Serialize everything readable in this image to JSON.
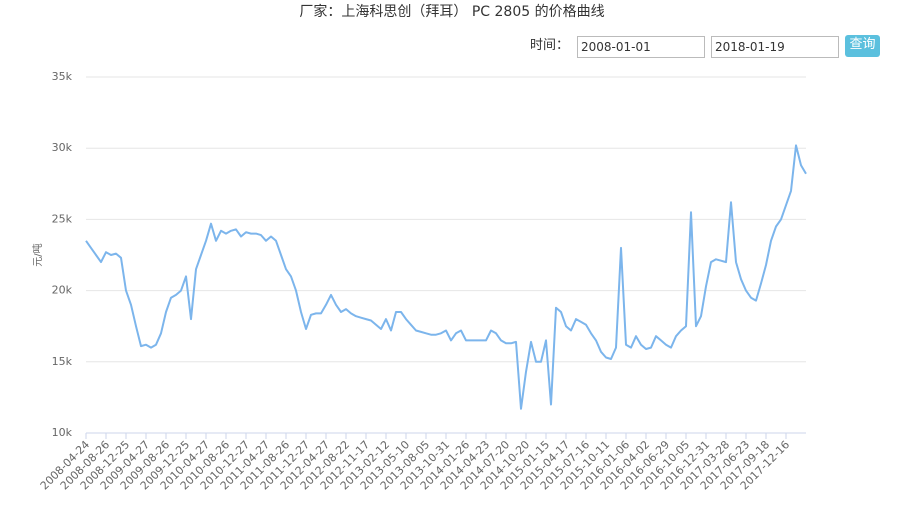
{
  "controls": {
    "time_label": "时间：",
    "start_date": "2008-01-01",
    "end_date": "2018-01-19",
    "button": "查询"
  },
  "chart_data": {
    "type": "line",
    "title": "厂家：上海科思创（拜耳） PC 2805 的价格曲线",
    "y_label": "元/吨",
    "categories": [
      "2008-04-24",
      null,
      null,
      null,
      "2008-08-26",
      null,
      null,
      null,
      "2008-12-25",
      null,
      null,
      null,
      "2009-04-27",
      null,
      null,
      null,
      "2009-08-26",
      null,
      null,
      null,
      "2009-12-25",
      null,
      null,
      null,
      "2010-04-27",
      null,
      null,
      null,
      "2010-08-26",
      null,
      null,
      null,
      "2010-12-27",
      null,
      null,
      null,
      "2011-04-27",
      null,
      null,
      null,
      "2011-08-26",
      null,
      null,
      null,
      "2011-12-27",
      null,
      null,
      null,
      "2012-04-27",
      null,
      null,
      null,
      "2012-08-22",
      null,
      null,
      null,
      "2012-11-17",
      null,
      null,
      null,
      "2013-02-12",
      null,
      null,
      null,
      "2013-05-10",
      null,
      null,
      null,
      "2013-08-05",
      null,
      null,
      null,
      "2013-10-31",
      null,
      null,
      null,
      "2014-01-26",
      null,
      null,
      null,
      "2014-04-23",
      null,
      null,
      null,
      "2014-07-20",
      null,
      null,
      null,
      "2014-10-20",
      null,
      null,
      null,
      "2015-01-15",
      null,
      null,
      null,
      "2015-04-17",
      null,
      null,
      null,
      "2015-07-16",
      null,
      null,
      null,
      "2015-10-11",
      null,
      null,
      null,
      "2016-01-06",
      null,
      null,
      null,
      "2016-04-02",
      null,
      null,
      null,
      "2016-06-29",
      null,
      null,
      null,
      "2016-10-05",
      null,
      null,
      null,
      "2016-12-31",
      null,
      null,
      null,
      "2017-03-28",
      null,
      null,
      null,
      "2017-06-23",
      null,
      null,
      null,
      "2017-09-18",
      null,
      null,
      null,
      "2017-12-16",
      null,
      null,
      null,
      null
    ],
    "series": [
      {
        "color": "#7cb5ec",
        "values": [
          23500,
          23000,
          22500,
          22000,
          22700,
          22500,
          22600,
          22300,
          20000,
          19000,
          17500,
          16100,
          16200,
          16000,
          16200,
          17000,
          18500,
          19500,
          19700,
          20000,
          21000,
          18000,
          21500,
          22500,
          23500,
          24700,
          23500,
          24200,
          24000,
          24200,
          24300,
          23800,
          24100,
          24000,
          24000,
          23900,
          23500,
          23800,
          23500,
          22500,
          21500,
          21000,
          20000,
          18500,
          17300,
          18300,
          18400,
          18400,
          19000,
          19700,
          19000,
          18500,
          18700,
          18400,
          18200,
          18100,
          18000,
          17900,
          17600,
          17300,
          18000,
          17200,
          18500,
          18500,
          18000,
          17600,
          17200,
          17100,
          17000,
          16900,
          16900,
          17000,
          17200,
          16500,
          17000,
          17200,
          16500,
          16500,
          16500,
          16500,
          16500,
          17200,
          17000,
          16500,
          16300,
          16300,
          16400,
          11700,
          14300,
          16400,
          15000,
          15000,
          16500,
          12000,
          18800,
          18500,
          17500,
          17200,
          18000,
          17800,
          17600,
          17000,
          16500,
          15700,
          15300,
          15200,
          16000,
          23000,
          16200,
          16000,
          16800,
          16200,
          15900,
          16000,
          16800,
          16500,
          16200,
          16000,
          16800,
          17200,
          17500,
          25500,
          17500,
          18200,
          20300,
          22000,
          22200,
          22100,
          22000,
          26200,
          22000,
          20800,
          20000,
          19500,
          19300,
          20500,
          21800,
          23500,
          24500,
          25000,
          26000,
          27000,
          30200,
          28800,
          28200
        ]
      }
    ],
    "ylim": [
      10000,
      35000
    ],
    "yticks": [
      {
        "value": 10000,
        "label": "10k"
      },
      {
        "value": 15000,
        "label": "15k"
      },
      {
        "value": 20000,
        "label": "20k"
      },
      {
        "value": 25000,
        "label": "25k"
      },
      {
        "value": 30000,
        "label": "30k"
      },
      {
        "value": 35000,
        "label": "35k"
      }
    ],
    "grid": true
  }
}
